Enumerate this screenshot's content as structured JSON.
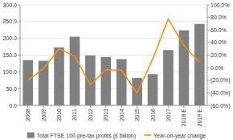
{
  "chart_data": {
    "type": "bar",
    "categories": [
      "2008",
      "2009",
      "2010",
      "2011",
      "2012",
      "2013",
      "2014",
      "2015",
      "2016",
      "2017",
      "2018 E",
      "2019 E"
    ],
    "series": [
      {
        "name": "Total FTSE 100 pre-tax profits (£ billion)",
        "type": "bar",
        "color": "#808080",
        "values": [
          135,
          133,
          173,
          205,
          149,
          144,
          138,
          82,
          93,
          165,
          224,
          243
        ]
      },
      {
        "name": "Year-on-year change",
        "type": "line",
        "color": "#FF8C00",
        "axis": "y2",
        "values": [
          -0.2,
          -0.015,
          0.3,
          0.185,
          -0.27,
          -0.033,
          -0.04,
          -0.405,
          0.135,
          0.775,
          0.355,
          0.085
        ]
      }
    ],
    "ylim": [
      0,
      300
    ],
    "yticks": [
      {
        "value": 0.0,
        "label": "0.0"
      },
      {
        "value": 50.0,
        "label": "50.0"
      },
      {
        "value": 100.0,
        "label": "100.0"
      },
      {
        "value": 150.0,
        "label": "150.0"
      },
      {
        "value": 200.0,
        "label": "200.0"
      },
      {
        "value": 250.0,
        "label": "250.0"
      },
      {
        "value": 300.0,
        "label": "300.0"
      }
    ],
    "y2lim": [
      -0.6,
      1.0
    ],
    "y2ticks": [
      {
        "value": -0.6,
        "label": "(60.0%)"
      },
      {
        "value": -0.4,
        "label": "(40.0%)"
      },
      {
        "value": -0.2,
        "label": "(20.0%)"
      },
      {
        "value": 0.0,
        "label": "0.0%"
      },
      {
        "value": 0.2,
        "label": "20.0%"
      },
      {
        "value": 0.4,
        "label": "40.0%"
      },
      {
        "value": 0.6,
        "label": "60.0%"
      },
      {
        "value": 0.8,
        "label": "80.0%"
      },
      {
        "value": 1.0,
        "label": "100.0%"
      }
    ],
    "grid": true,
    "legend": "bottom"
  }
}
